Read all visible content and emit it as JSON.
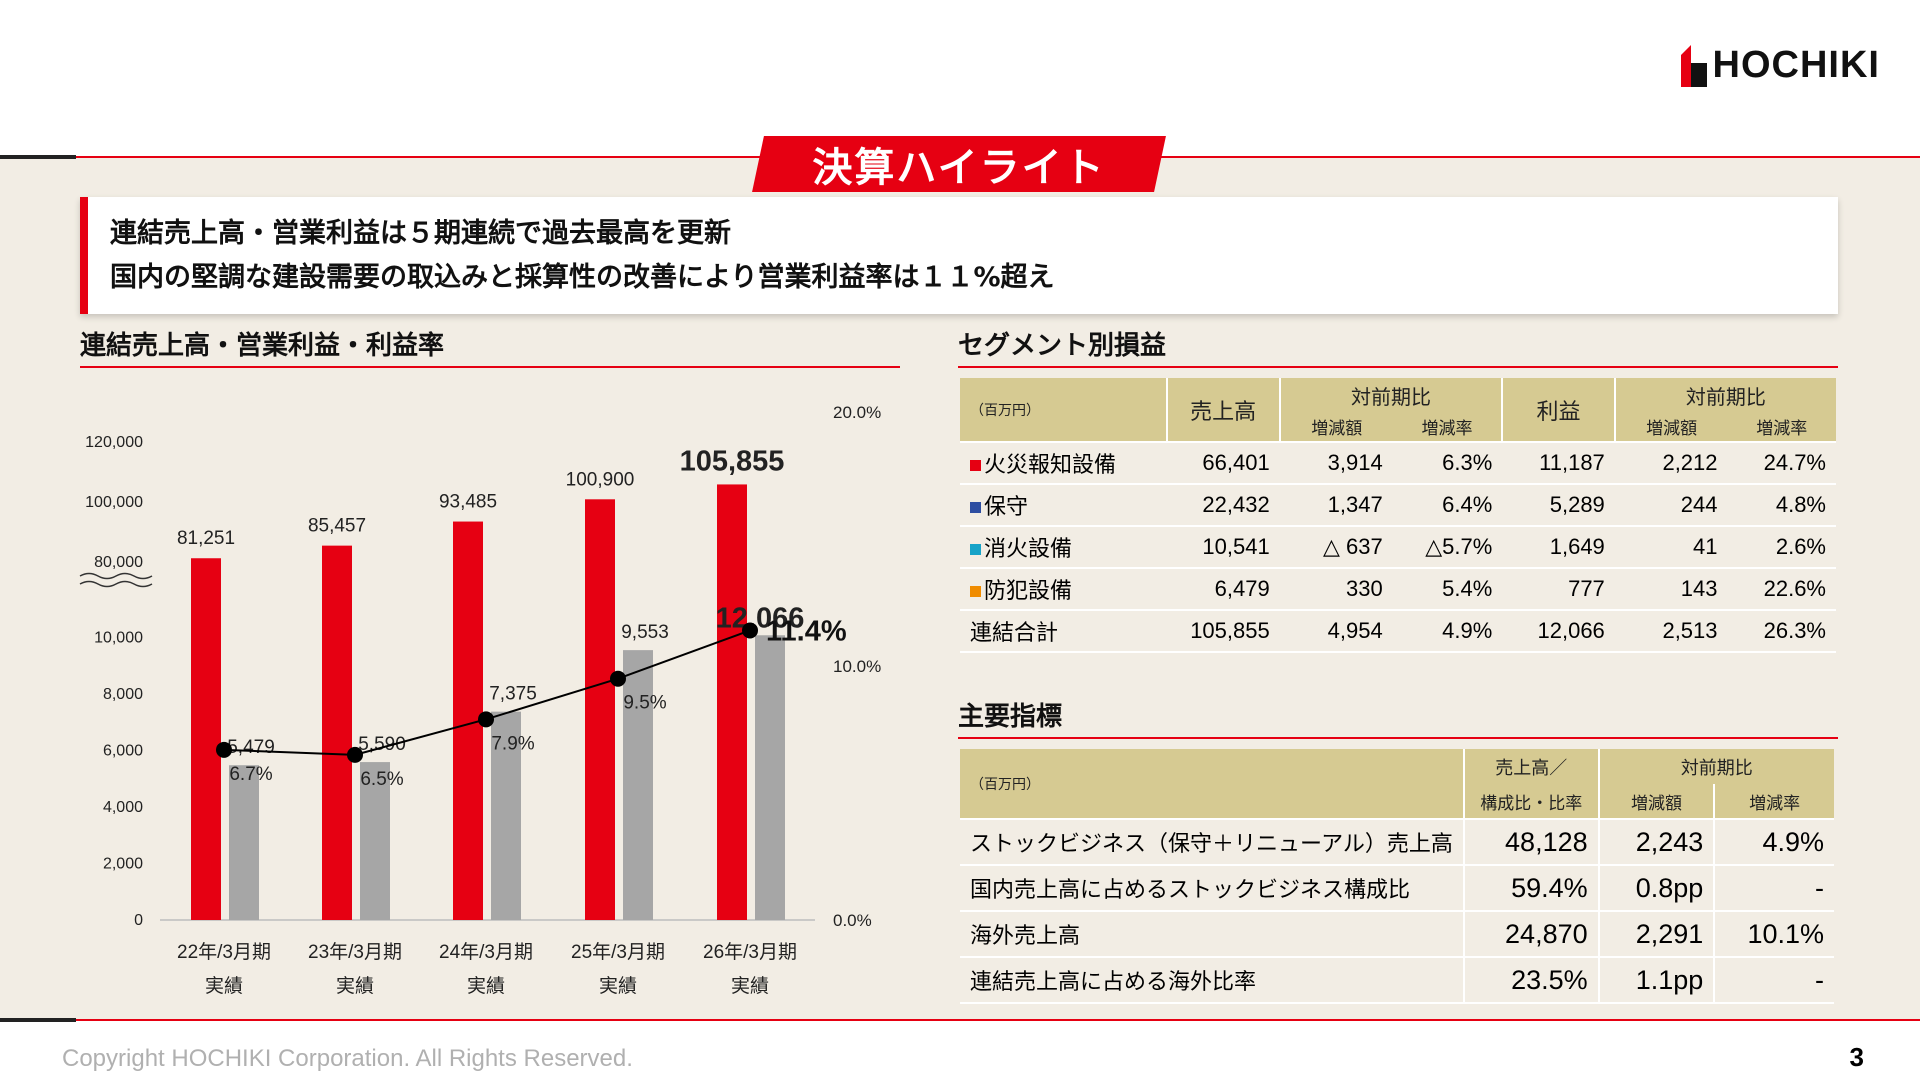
{
  "logo_text": "HOCHIKI",
  "banner_title": "決算ハイライト",
  "highlights": [
    "連結売上高・営業利益は５期連続で過去最高を更新",
    "国内の堅調な建設需要の取込みと採算性の改善により営業利益率は１１%超え"
  ],
  "chart_section_title": "連結売上高・営業利益・利益率",
  "chart_data": {
    "type": "bar",
    "categories": [
      "22年/3月期",
      "23年/3月期",
      "24年/3月期",
      "25年/3月期",
      "26年/3月期"
    ],
    "category_sublabel": "実績",
    "series": [
      {
        "values": [
          81251,
          85457,
          93485,
          100900,
          105855
        ],
        "labels": [
          "81,251",
          "85,457",
          "93,485",
          "100,900",
          "105,855"
        ],
        "color": "#e60012"
      },
      {
        "values": [
          5479,
          5590,
          7375,
          9553,
          12066
        ],
        "labels": [
          "5,479",
          "5,590",
          "7,375",
          "9,553",
          "12,066"
        ],
        "color": "#a6a6a6"
      },
      {
        "type": "line",
        "values": [
          6.7,
          6.5,
          7.9,
          9.5,
          11.4
        ],
        "labels": [
          "6.7%",
          "6.5%",
          "7.9%",
          "9.5%",
          "11.4%"
        ],
        "color": "#000000"
      }
    ],
    "left_axis_ticks": [
      "0",
      "2,000",
      "4,000",
      "6,000",
      "8,000",
      "10,000",
      "80,000",
      "100,000",
      "120,000"
    ],
    "right_axis_ticks": [
      "0.0%",
      "10.0%",
      "20.0%"
    ],
    "left_axis_break": true,
    "highlight_last": true
  },
  "segment_section_title": "セグメント別損益",
  "segment_table": {
    "unit": "（百万円）",
    "h_sales": "売上高",
    "h_profit": "利益",
    "h_yoy": "対前期比",
    "h_diff": "増減額",
    "h_rate": "増減率",
    "rows": [
      {
        "name": "火災報知設備",
        "color": "#e60012",
        "sales": "66,401",
        "sd": "3,914",
        "sr": "6.3%",
        "profit": "11,187",
        "pd": "2,212",
        "pr": "24.7%"
      },
      {
        "name": "保守",
        "color": "#2e4ea1",
        "sales": "22,432",
        "sd": "1,347",
        "sr": "6.4%",
        "profit": "5,289",
        "pd": "244",
        "pr": "4.8%"
      },
      {
        "name": "消火設備",
        "color": "#17a3c8",
        "sales": "10,541",
        "sd": "△ 637",
        "sr": "△5.7%",
        "profit": "1,649",
        "pd": "41",
        "pr": "2.6%"
      },
      {
        "name": "防犯設備",
        "color": "#f08c00",
        "sales": "6,479",
        "sd": "330",
        "sr": "5.4%",
        "profit": "777",
        "pd": "143",
        "pr": "22.6%"
      },
      {
        "name": "連結合計",
        "color": "",
        "sales": "105,855",
        "sd": "4,954",
        "sr": "4.9%",
        "profit": "12,066",
        "pd": "2,513",
        "pr": "26.3%"
      }
    ]
  },
  "kpi_section_title": "主要指標",
  "kpi_table": {
    "unit": "（百万円）",
    "h_value_line1": "売上高／",
    "h_value_line2": "構成比・比率",
    "h_yoy": "対前期比",
    "h_diff": "増減額",
    "h_rate": "増減率",
    "rows": [
      {
        "name": "ストックビジネス（保守＋リニューアル）売上高",
        "value": "48,128",
        "diff": "2,243",
        "rate": "4.9%"
      },
      {
        "name": "国内売上高に占めるストックビジネス構成比",
        "value": "59.4%",
        "diff": "0.8pp",
        "rate": "-"
      },
      {
        "name": "海外売上高",
        "value": "24,870",
        "diff": "2,291",
        "rate": "10.1%"
      },
      {
        "name": "連結売上高に占める海外比率",
        "value": "23.5%",
        "diff": "1.1pp",
        "rate": "-"
      }
    ]
  },
  "footer": "Copyright HOCHIKI Corporation. All Rights Reserved.",
  "page_number": "3"
}
